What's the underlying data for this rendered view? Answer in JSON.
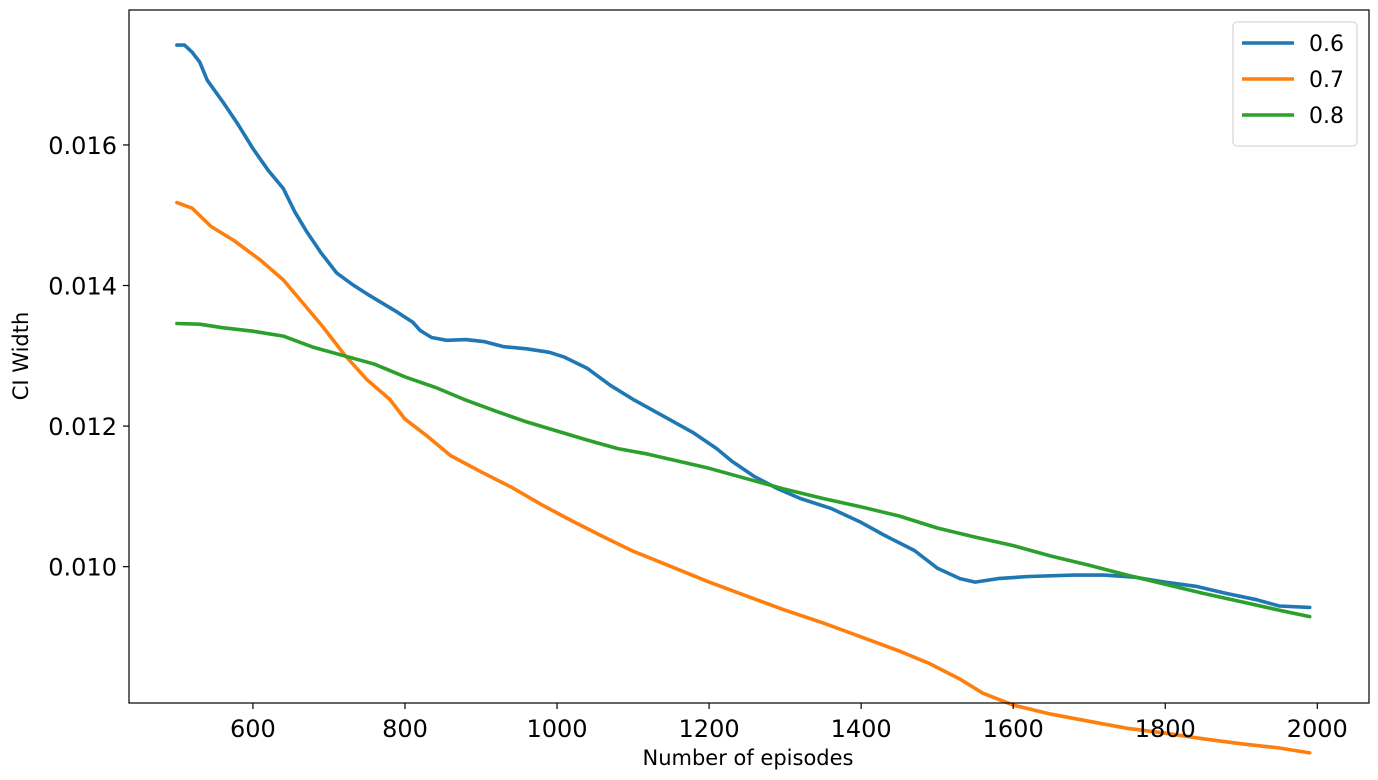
{
  "chart_data": {
    "type": "line",
    "title": "",
    "xlabel": "Number of episodes",
    "ylabel": "CI Width",
    "xlim": [
      437,
      2068
    ],
    "ylim": [
      0.00806,
      0.01792
    ],
    "xticks": [
      600,
      800,
      1000,
      1200,
      1400,
      1600,
      1800,
      2000
    ],
    "xtick_labels": [
      "600",
      "800",
      "1000",
      "1200",
      "1400",
      "1600",
      "1800",
      "2000"
    ],
    "yticks": [
      0.01,
      0.012,
      0.014,
      0.016
    ],
    "ytick_labels": [
      "0.010",
      "0.012",
      "0.014",
      "0.016"
    ],
    "grid": false,
    "legend_position": "top-right",
    "series": [
      {
        "name": "0.6",
        "color": "#1f77b4",
        "points": [
          [
            500,
            0.01742
          ],
          [
            510,
            0.01742
          ],
          [
            520,
            0.01732
          ],
          [
            530,
            0.01718
          ],
          [
            540,
            0.01692
          ],
          [
            560,
            0.01662
          ],
          [
            580,
            0.0163
          ],
          [
            600,
            0.01595
          ],
          [
            620,
            0.01564
          ],
          [
            640,
            0.01538
          ],
          [
            655,
            0.01505
          ],
          [
            670,
            0.01478
          ],
          [
            690,
            0.01446
          ],
          [
            710,
            0.01418
          ],
          [
            730,
            0.01402
          ],
          [
            750,
            0.01388
          ],
          [
            770,
            0.01375
          ],
          [
            790,
            0.01362
          ],
          [
            810,
            0.01348
          ],
          [
            820,
            0.01336
          ],
          [
            835,
            0.01326
          ],
          [
            855,
            0.01322
          ],
          [
            880,
            0.01323
          ],
          [
            905,
            0.0132
          ],
          [
            930,
            0.01313
          ],
          [
            960,
            0.0131
          ],
          [
            990,
            0.01305
          ],
          [
            1010,
            0.01298
          ],
          [
            1040,
            0.01282
          ],
          [
            1070,
            0.01258
          ],
          [
            1100,
            0.01238
          ],
          [
            1140,
            0.01214
          ],
          [
            1180,
            0.0119
          ],
          [
            1210,
            0.01168
          ],
          [
            1230,
            0.0115
          ],
          [
            1260,
            0.01128
          ],
          [
            1290,
            0.01111
          ],
          [
            1320,
            0.01097
          ],
          [
            1360,
            0.01083
          ],
          [
            1400,
            0.01063
          ],
          [
            1430,
            0.01045
          ],
          [
            1470,
            0.01023
          ],
          [
            1500,
            0.00998
          ],
          [
            1530,
            0.00983
          ],
          [
            1550,
            0.00978
          ],
          [
            1580,
            0.00983
          ],
          [
            1620,
            0.00986
          ],
          [
            1680,
            0.00988
          ],
          [
            1720,
            0.00988
          ],
          [
            1760,
            0.00985
          ],
          [
            1800,
            0.00978
          ],
          [
            1840,
            0.00972
          ],
          [
            1880,
            0.00962
          ],
          [
            1920,
            0.00953
          ],
          [
            1950,
            0.00944
          ],
          [
            1990,
            0.00942
          ]
        ]
      },
      {
        "name": "0.7",
        "color": "#ff7f0e",
        "points": [
          [
            500,
            0.01518
          ],
          [
            520,
            0.0151
          ],
          [
            545,
            0.01484
          ],
          [
            575,
            0.01464
          ],
          [
            610,
            0.01436
          ],
          [
            640,
            0.01408
          ],
          [
            665,
            0.01376
          ],
          [
            690,
            0.01344
          ],
          [
            720,
            0.01302
          ],
          [
            750,
            0.01266
          ],
          [
            780,
            0.01238
          ],
          [
            800,
            0.0121
          ],
          [
            830,
            0.01185
          ],
          [
            860,
            0.01158
          ],
          [
            900,
            0.01135
          ],
          [
            940,
            0.01113
          ],
          [
            980,
            0.01088
          ],
          [
            1020,
            0.01065
          ],
          [
            1060,
            0.01043
          ],
          [
            1100,
            0.01022
          ],
          [
            1150,
            0.01
          ],
          [
            1200,
            0.00978
          ],
          [
            1250,
            0.00958
          ],
          [
            1300,
            0.00938
          ],
          [
            1350,
            0.0092
          ],
          [
            1400,
            0.009
          ],
          [
            1450,
            0.0088
          ],
          [
            1490,
            0.00862
          ],
          [
            1530,
            0.0084
          ],
          [
            1560,
            0.0082
          ],
          [
            1600,
            0.00803
          ],
          [
            1650,
            0.0079
          ],
          [
            1700,
            0.0078
          ],
          [
            1750,
            0.0077
          ],
          [
            1800,
            0.00763
          ],
          [
            1850,
            0.00755
          ],
          [
            1900,
            0.00748
          ],
          [
            1950,
            0.00742
          ],
          [
            1990,
            0.00735
          ]
        ]
      },
      {
        "name": "0.8",
        "color": "#2ca02c",
        "points": [
          [
            500,
            0.01346
          ],
          [
            530,
            0.01345
          ],
          [
            560,
            0.0134
          ],
          [
            600,
            0.01335
          ],
          [
            640,
            0.01328
          ],
          [
            680,
            0.01312
          ],
          [
            720,
            0.013
          ],
          [
            760,
            0.01288
          ],
          [
            800,
            0.0127
          ],
          [
            840,
            0.01255
          ],
          [
            880,
            0.01237
          ],
          [
            920,
            0.01221
          ],
          [
            960,
            0.01206
          ],
          [
            1000,
            0.01193
          ],
          [
            1040,
            0.0118
          ],
          [
            1080,
            0.01168
          ],
          [
            1120,
            0.0116
          ],
          [
            1160,
            0.0115
          ],
          [
            1200,
            0.0114
          ],
          [
            1250,
            0.01125
          ],
          [
            1300,
            0.0111
          ],
          [
            1350,
            0.01097
          ],
          [
            1400,
            0.01085
          ],
          [
            1450,
            0.01072
          ],
          [
            1500,
            0.01055
          ],
          [
            1550,
            0.01042
          ],
          [
            1600,
            0.0103
          ],
          [
            1650,
            0.01015
          ],
          [
            1700,
            0.01002
          ],
          [
            1750,
            0.00988
          ],
          [
            1800,
            0.00975
          ],
          [
            1850,
            0.00962
          ],
          [
            1900,
            0.0095
          ],
          [
            1950,
            0.00938
          ],
          [
            1990,
            0.00929
          ]
        ]
      }
    ]
  }
}
